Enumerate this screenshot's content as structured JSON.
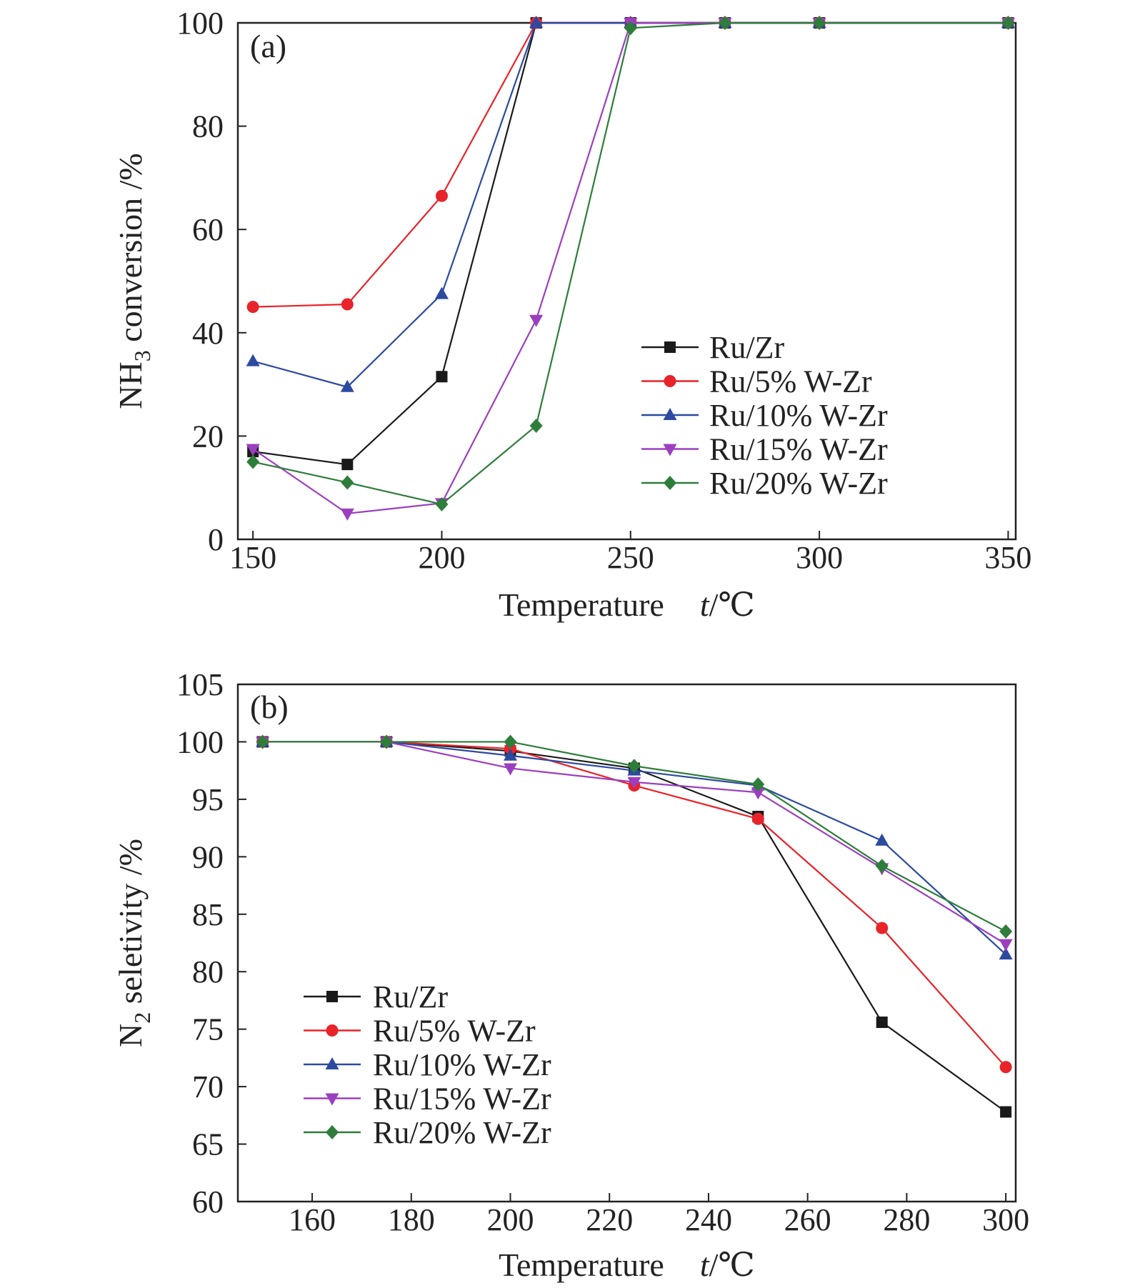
{
  "chart_data": [
    {
      "type": "line",
      "panel_label": "(a)",
      "xlabel": "Temperature",
      "xlabel_unit_var": "t",
      "xlabel_unit": "/℃",
      "ylabel_pre": "NH",
      "ylabel_sub": "3",
      "ylabel_post": " conversion /%",
      "xlim": [
        146,
        352
      ],
      "ylim": [
        0,
        100
      ],
      "xticks": [
        150,
        200,
        250,
        300,
        350
      ],
      "yticks": [
        0,
        20,
        40,
        60,
        80,
        100
      ],
      "x_positions": [
        150,
        175,
        200,
        225,
        250,
        275,
        300,
        350
      ],
      "series": [
        {
          "name": "Ru/Zr",
          "marker": "square",
          "values": [
            17,
            14.5,
            31.5,
            100,
            100,
            100,
            100,
            100
          ]
        },
        {
          "name": "Ru/5% W-Zr",
          "marker": "circle",
          "values": [
            45,
            45.5,
            66.5,
            100,
            100,
            100,
            100,
            100
          ]
        },
        {
          "name": "Ru/10% W-Zr",
          "marker": "triangle-up",
          "values": [
            34.5,
            29.5,
            47.5,
            100,
            100,
            100,
            100,
            100
          ]
        },
        {
          "name": "Ru/15% W-Zr",
          "marker": "triangle-down",
          "values": [
            17.5,
            5,
            7,
            42.5,
            100,
            100,
            100,
            100
          ]
        },
        {
          "name": "Ru/20% W-Zr",
          "marker": "diamond",
          "values": [
            15,
            11,
            6.8,
            22,
            99,
            100,
            100,
            100
          ]
        }
      ],
      "legend_position": "lower-right"
    },
    {
      "type": "line",
      "panel_label": "(b)",
      "xlabel": "Temperature",
      "xlabel_unit_var": "t",
      "xlabel_unit": "/℃",
      "ylabel_pre": "N",
      "ylabel_sub": "2",
      "ylabel_post": " seletivity /%",
      "xlim": [
        145,
        302
      ],
      "ylim": [
        60,
        105
      ],
      "xticks": [
        160,
        180,
        200,
        220,
        240,
        260,
        280,
        300
      ],
      "yticks": [
        60,
        65,
        70,
        75,
        80,
        85,
        90,
        95,
        100,
        105
      ],
      "x_positions": [
        150,
        175,
        200,
        225,
        250,
        275,
        300
      ],
      "series": [
        {
          "name": "Ru/Zr",
          "marker": "square",
          "values": [
            100,
            100,
            99.2,
            97.7,
            93.5,
            75.6,
            67.8
          ]
        },
        {
          "name": "Ru/5% W-Zr",
          "marker": "circle",
          "values": [
            100,
            100,
            99.4,
            96.2,
            93.3,
            83.8,
            71.7
          ]
        },
        {
          "name": "Ru/10% W-Zr",
          "marker": "triangle-up",
          "values": [
            100,
            100,
            98.8,
            97.5,
            96.2,
            91.4,
            81.5
          ]
        },
        {
          "name": "Ru/15% W-Zr",
          "marker": "triangle-down",
          "values": [
            100,
            100,
            97.7,
            96.5,
            95.6,
            89,
            82.4
          ]
        },
        {
          "name": "Ru/20% W-Zr",
          "marker": "diamond",
          "values": [
            100,
            100,
            100,
            97.9,
            96.3,
            89.2,
            83.5
          ]
        }
      ],
      "legend_position": "lower-left"
    }
  ],
  "colors": {
    "Ru/Zr": "#1a1a1a",
    "Ru/5% W-Zr": "#e8232a",
    "Ru/10% W-Zr": "#2c4aa0",
    "Ru/15% W-Zr": "#9b3fbf",
    "Ru/20% W-Zr": "#2e7d3a"
  }
}
